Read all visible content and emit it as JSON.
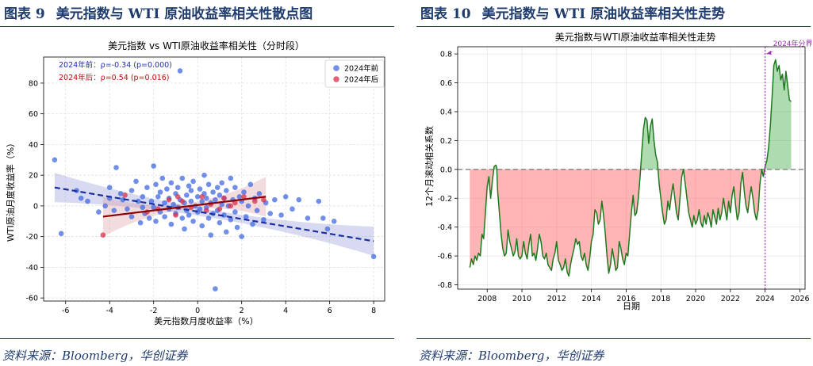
{
  "left": {
    "header_prefix": "图表 9",
    "header_title": "美元指数与 WTI 原油收益率相关性散点图",
    "source": "资料来源：Bloomberg，华创证券"
  },
  "right": {
    "header_prefix": "图表 10",
    "header_title": "美元指数与 WTI 原油收益率相关性走势",
    "source": "资料来源：Bloomberg，华创证券"
  },
  "chart_data": [
    {
      "type": "scatter",
      "title": "美元指数 vs WTI原油收益率相关性（分时段）",
      "xlabel": "美元指数月度收益率（%）",
      "ylabel": "WTI原油月度收益率（%）",
      "xlim": [
        -7,
        8.5
      ],
      "ylim": [
        -62,
        97
      ],
      "xticks": [
        -6,
        -4,
        -2,
        0,
        2,
        4,
        6,
        8
      ],
      "yticks": [
        -60,
        -40,
        -20,
        0,
        20,
        40,
        60,
        80
      ],
      "grid": true,
      "legend_position": "top-right",
      "annotations": [
        {
          "text": "2024年前：ρ=-0.34 (p=0.000)",
          "color": "#1f2fa8"
        },
        {
          "text": "2024年后：ρ=0.54 (p=0.016)",
          "color": "#b01010"
        }
      ],
      "series": [
        {
          "name": "2024年前",
          "color": "#4169e1",
          "points": [
            [
              -6.5,
              30
            ],
            [
              -6.2,
              -18
            ],
            [
              -5.5,
              10
            ],
            [
              -5.3,
              5
            ],
            [
              -5.0,
              3
            ],
            [
              -4.5,
              -4
            ],
            [
              -4.2,
              0
            ],
            [
              -4.0,
              12
            ],
            [
              -4.0,
              5
            ],
            [
              -3.8,
              -3
            ],
            [
              -3.7,
              25
            ],
            [
              -3.5,
              8
            ],
            [
              -3.4,
              4
            ],
            [
              -3.2,
              -2
            ],
            [
              -3.0,
              10
            ],
            [
              -3.0,
              -7
            ],
            [
              -2.8,
              16
            ],
            [
              -2.7,
              3
            ],
            [
              -2.6,
              -11
            ],
            [
              -2.5,
              6
            ],
            [
              -2.5,
              -1
            ],
            [
              -2.4,
              -5
            ],
            [
              -2.3,
              12
            ],
            [
              -2.2,
              -8
            ],
            [
              -2.1,
              3
            ],
            [
              -2.0,
              26
            ],
            [
              -2.0,
              -1
            ],
            [
              -1.9,
              14
            ],
            [
              -1.9,
              -10
            ],
            [
              -1.8,
              6
            ],
            [
              -1.7,
              -4
            ],
            [
              -1.7,
              9
            ],
            [
              -1.6,
              18
            ],
            [
              -1.5,
              2
            ],
            [
              -1.5,
              -7
            ],
            [
              -1.4,
              11
            ],
            [
              -1.3,
              -2
            ],
            [
              -1.3,
              5
            ],
            [
              -1.2,
              -12
            ],
            [
              -1.2,
              15
            ],
            [
              -1.1,
              1
            ],
            [
              -1.0,
              8
            ],
            [
              -1.0,
              -5
            ],
            [
              -0.9,
              12
            ],
            [
              -0.9,
              -1
            ],
            [
              -0.8,
              88
            ],
            [
              -0.8,
              4
            ],
            [
              -0.7,
              -8
            ],
            [
              -0.7,
              18
            ],
            [
              -0.6,
              2
            ],
            [
              -0.6,
              -15
            ],
            [
              -0.5,
              7
            ],
            [
              -0.5,
              -3
            ],
            [
              -0.4,
              13
            ],
            [
              -0.4,
              -6
            ],
            [
              -0.3,
              3
            ],
            [
              -0.3,
              10
            ],
            [
              -0.2,
              -10
            ],
            [
              -0.2,
              16
            ],
            [
              -0.1,
              0
            ],
            [
              0.0,
              6
            ],
            [
              0.0,
              -4
            ],
            [
              0.1,
              11
            ],
            [
              0.1,
              -2
            ],
            [
              0.2,
              3
            ],
            [
              0.2,
              -13
            ],
            [
              0.3,
              8
            ],
            [
              0.3,
              20
            ],
            [
              0.4,
              -1
            ],
            [
              0.4,
              5
            ],
            [
              0.5,
              -8
            ],
            [
              0.5,
              14
            ],
            [
              0.6,
              2
            ],
            [
              0.6,
              -19
            ],
            [
              0.7,
              9
            ],
            [
              0.7,
              -5
            ],
            [
              0.8,
              -54
            ],
            [
              0.8,
              4
            ],
            [
              0.9,
              12
            ],
            [
              0.9,
              -3
            ],
            [
              1.0,
              7
            ],
            [
              1.0,
              -11
            ],
            [
              1.1,
              1
            ],
            [
              1.1,
              15
            ],
            [
              1.2,
              -6
            ],
            [
              1.2,
              5
            ],
            [
              1.3,
              -17
            ],
            [
              1.3,
              10
            ],
            [
              1.4,
              0
            ],
            [
              1.5,
              18
            ],
            [
              1.5,
              -9
            ],
            [
              1.6,
              4
            ],
            [
              1.7,
              -4
            ],
            [
              1.7,
              12
            ],
            [
              1.8,
              -14
            ],
            [
              1.9,
              6
            ],
            [
              2.0,
              -20
            ],
            [
              2.0,
              3
            ],
            [
              2.1,
              9
            ],
            [
              2.2,
              -7
            ],
            [
              2.3,
              0
            ],
            [
              2.4,
              14
            ],
            [
              2.5,
              -12
            ],
            [
              2.6,
              5
            ],
            [
              2.7,
              -3
            ],
            [
              2.8,
              8
            ],
            [
              3.0,
              -9
            ],
            [
              3.1,
              2
            ],
            [
              3.3,
              -5
            ],
            [
              3.5,
              4
            ],
            [
              3.8,
              -6
            ],
            [
              4.0,
              6
            ],
            [
              4.3,
              -2
            ],
            [
              4.6,
              4
            ],
            [
              5.0,
              -8
            ],
            [
              5.5,
              3
            ],
            [
              5.7,
              -8
            ],
            [
              5.9,
              -15
            ],
            [
              6.2,
              -10
            ],
            [
              8.0,
              -33
            ]
          ]
        },
        {
          "name": "2024年后",
          "color": "#dc2f4a",
          "points": [
            [
              -4.3,
              -19
            ],
            [
              -3.3,
              7
            ],
            [
              -2.3,
              -4
            ],
            [
              -1.8,
              -2
            ],
            [
              -1.3,
              4
            ],
            [
              -1.0,
              -6
            ],
            [
              -0.7,
              3
            ],
            [
              -0.3,
              -1
            ],
            [
              0.2,
              6
            ],
            [
              0.6,
              1
            ],
            [
              1.0,
              -2
            ],
            [
              1.2,
              5
            ],
            [
              1.7,
              2
            ],
            [
              2.1,
              6
            ],
            [
              2.6,
              3
            ],
            [
              3.0,
              4
            ],
            [
              -0.9,
              6
            ],
            [
              0.4,
              -3
            ],
            [
              1.5,
              0
            ]
          ]
        }
      ],
      "fits": [
        {
          "series": "2024年前",
          "x": [
            -6.5,
            8.0
          ],
          "y": [
            12,
            -23
          ],
          "color": "#1a2fa0",
          "style": "dashed"
        },
        {
          "series": "2024年后",
          "x": [
            -4.3,
            3.1
          ],
          "y": [
            -7,
            6
          ],
          "color": "#8b0000",
          "style": "solid"
        }
      ]
    },
    {
      "type": "line",
      "title": "美元指数与WTI原油收益率相关性走势",
      "xlabel": "日期",
      "ylabel": "12个月滚动相关系数",
      "xlim": [
        2006.3,
        2026.3
      ],
      "ylim": [
        -0.83,
        0.85
      ],
      "xticks": [
        2008,
        2010,
        2012,
        2014,
        2016,
        2018,
        2020,
        2022,
        2024,
        2026
      ],
      "yticks": [
        -0.8,
        -0.6,
        -0.4,
        -0.2,
        0.0,
        0.2,
        0.4,
        0.6,
        0.8
      ],
      "grid": true,
      "reference_line": {
        "y": 0.0,
        "style": "dashed",
        "color": "#808080"
      },
      "split_marker": {
        "x": 2024.0,
        "label": "2024年分界",
        "color": "#9b30b0"
      },
      "fill_positive_color": "#4caf50",
      "fill_negative_color": "#ff5a5a",
      "series": [
        {
          "name": "",
          "color": "#1e7a1e",
          "x": [
            2007.0,
            2007.1,
            2007.2,
            2007.3,
            2007.4,
            2007.5,
            2007.6,
            2007.7,
            2007.8,
            2007.9,
            2008.0,
            2008.1,
            2008.2,
            2008.3,
            2008.4,
            2008.5,
            2008.55,
            2008.6,
            2008.7,
            2008.8,
            2008.9,
            2009.0,
            2009.1,
            2009.2,
            2009.3,
            2009.4,
            2009.5,
            2009.6,
            2009.7,
            2009.8,
            2009.9,
            2010.0,
            2010.1,
            2010.2,
            2010.3,
            2010.4,
            2010.5,
            2010.6,
            2010.7,
            2010.8,
            2010.9,
            2011.0,
            2011.1,
            2011.2,
            2011.3,
            2011.4,
            2011.5,
            2011.6,
            2011.7,
            2011.8,
            2011.9,
            2012.0,
            2012.1,
            2012.2,
            2012.3,
            2012.4,
            2012.5,
            2012.6,
            2012.7,
            2012.8,
            2012.9,
            2013.0,
            2013.1,
            2013.2,
            2013.3,
            2013.4,
            2013.5,
            2013.6,
            2013.7,
            2013.8,
            2013.9,
            2014.0,
            2014.1,
            2014.2,
            2014.3,
            2014.4,
            2014.5,
            2014.6,
            2014.7,
            2014.8,
            2014.9,
            2015.0,
            2015.1,
            2015.2,
            2015.3,
            2015.4,
            2015.5,
            2015.6,
            2015.7,
            2015.8,
            2015.9,
            2016.0,
            2016.1,
            2016.2,
            2016.3,
            2016.4,
            2016.5,
            2016.6,
            2016.7,
            2016.8,
            2016.9,
            2017.0,
            2017.1,
            2017.2,
            2017.3,
            2017.4,
            2017.5,
            2017.6,
            2017.7,
            2017.8,
            2017.9,
            2018.0,
            2018.1,
            2018.2,
            2018.3,
            2018.4,
            2018.5,
            2018.6,
            2018.7,
            2018.8,
            2018.9,
            2019.0,
            2019.1,
            2019.2,
            2019.3,
            2019.4,
            2019.5,
            2019.6,
            2019.7,
            2019.8,
            2019.9,
            2020.0,
            2020.1,
            2020.2,
            2020.3,
            2020.4,
            2020.5,
            2020.6,
            2020.7,
            2020.8,
            2020.9,
            2021.0,
            2021.1,
            2021.2,
            2021.3,
            2021.4,
            2021.5,
            2021.6,
            2021.7,
            2021.8,
            2021.9,
            2022.0,
            2022.1,
            2022.2,
            2022.3,
            2022.4,
            2022.5,
            2022.6,
            2022.7,
            2022.8,
            2022.9,
            2023.0,
            2023.1,
            2023.2,
            2023.3,
            2023.4,
            2023.5,
            2023.6,
            2023.7,
            2023.8,
            2023.9,
            2024.0,
            2024.1,
            2024.2,
            2024.3,
            2024.4,
            2024.5,
            2024.6,
            2024.7,
            2024.8,
            2024.9,
            2025.0,
            2025.1,
            2025.2,
            2025.3,
            2025.4,
            2025.5
          ],
          "y": [
            -0.68,
            -0.62,
            -0.66,
            -0.6,
            -0.63,
            -0.58,
            -0.6,
            -0.45,
            -0.48,
            -0.3,
            -0.12,
            -0.05,
            -0.2,
            -0.08,
            0.02,
            0.03,
            0.01,
            -0.15,
            -0.3,
            -0.45,
            -0.55,
            -0.6,
            -0.58,
            -0.42,
            -0.5,
            -0.55,
            -0.6,
            -0.57,
            -0.48,
            -0.6,
            -0.62,
            -0.6,
            -0.5,
            -0.58,
            -0.62,
            -0.52,
            -0.45,
            -0.6,
            -0.58,
            -0.63,
            -0.55,
            -0.45,
            -0.5,
            -0.6,
            -0.62,
            -0.58,
            -0.66,
            -0.68,
            -0.7,
            -0.62,
            -0.58,
            -0.5,
            -0.63,
            -0.66,
            -0.7,
            -0.68,
            -0.62,
            -0.71,
            -0.74,
            -0.66,
            -0.6,
            -0.55,
            -0.48,
            -0.52,
            -0.5,
            -0.6,
            -0.63,
            -0.58,
            -0.66,
            -0.7,
            -0.62,
            -0.5,
            -0.45,
            -0.28,
            -0.3,
            -0.38,
            -0.35,
            -0.22,
            -0.32,
            -0.45,
            -0.6,
            -0.72,
            -0.66,
            -0.55,
            -0.62,
            -0.7,
            -0.68,
            -0.5,
            -0.55,
            -0.62,
            -0.66,
            -0.58,
            -0.6,
            -0.45,
            -0.3,
            -0.18,
            -0.32,
            -0.3,
            -0.2,
            -0.05,
            0.12,
            0.28,
            0.36,
            0.34,
            0.18,
            0.3,
            0.35,
            0.2,
            0.1,
            0.05,
            -0.1,
            -0.2,
            -0.3,
            -0.38,
            -0.35,
            -0.22,
            -0.28,
            -0.18,
            -0.1,
            -0.2,
            -0.3,
            -0.35,
            -0.2,
            -0.05,
            0.0,
            -0.1,
            -0.2,
            -0.3,
            -0.35,
            -0.4,
            -0.32,
            -0.38,
            -0.35,
            -0.28,
            -0.37,
            -0.4,
            -0.32,
            -0.38,
            -0.3,
            -0.34,
            -0.4,
            -0.28,
            -0.33,
            -0.38,
            -0.27,
            -0.35,
            -0.3,
            -0.2,
            -0.28,
            -0.35,
            -0.22,
            -0.3,
            -0.18,
            -0.12,
            -0.25,
            -0.35,
            -0.3,
            -0.1,
            -0.02,
            -0.15,
            -0.25,
            -0.3,
            -0.2,
            -0.12,
            -0.2,
            -0.3,
            -0.35,
            -0.28,
            -0.1,
            0.0,
            -0.05,
            0.02,
            0.06,
            0.15,
            0.3,
            0.5,
            0.72,
            0.76,
            0.68,
            0.72,
            0.62,
            0.66,
            0.55,
            0.68,
            0.58,
            0.48,
            0.47
          ]
        }
      ]
    }
  ]
}
